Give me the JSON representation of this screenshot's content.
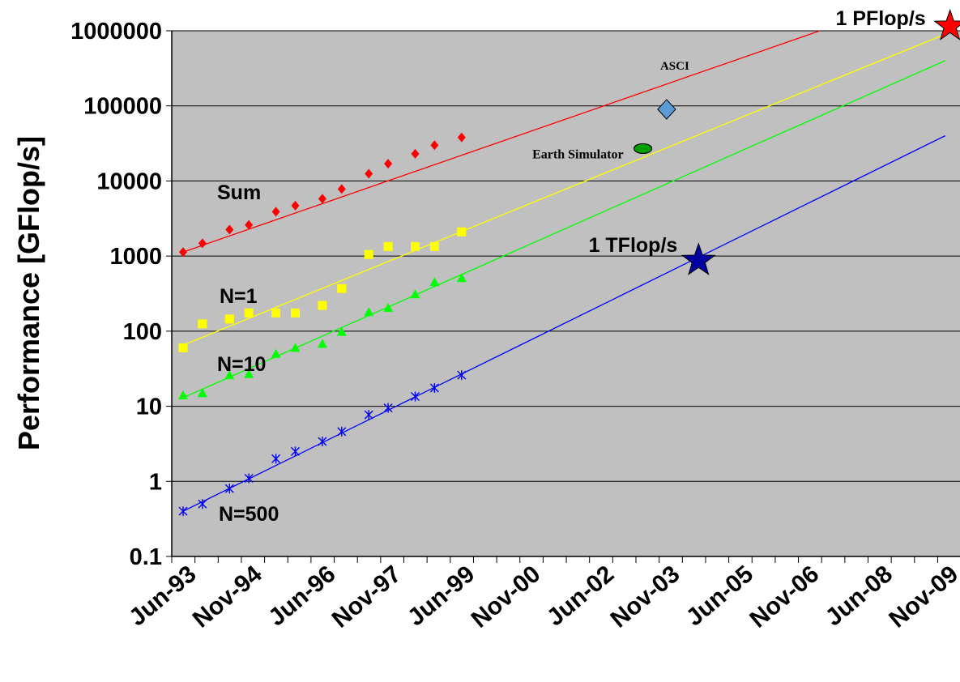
{
  "chart_data": {
    "type": "scatter",
    "title": "",
    "xlabel": "",
    "ylabel": "Performance [GFlop/s]",
    "yscale": "log",
    "ylim": [
      0.1,
      1000000
    ],
    "y_ticks": [
      "0.1",
      "1",
      "10",
      "100",
      "1000",
      "10000",
      "100000",
      "1000000"
    ],
    "x_ticks": [
      "Jun-93",
      "Nov-94",
      "Jun-96",
      "Nov-97",
      "Jun-99",
      "Nov-00",
      "Jun-02",
      "Nov-03",
      "Jun-05",
      "Nov-06",
      "Jun-08",
      "Nov-09"
    ],
    "x_dates": [
      "Jun-93",
      "Nov-93",
      "Jun-94",
      "Nov-94",
      "Jun-95",
      "Nov-95",
      "Jun-96",
      "Nov-96",
      "Jun-97",
      "Nov-97",
      "Jun-98",
      "Nov-98",
      "Jun-99"
    ],
    "grid": true,
    "background": "#c0c0c0",
    "series": [
      {
        "name": "Sum",
        "color": "#ff0000",
        "marker": "diamond",
        "values": [
          1130,
          1480,
          2250,
          2600,
          3900,
          4700,
          5800,
          7800,
          12500,
          17000,
          23000,
          30000,
          38000
        ],
        "trend": {
          "from": [
            "Jun-93",
            1130
          ],
          "to": [
            "Nov-09",
            3800000
          ]
        }
      },
      {
        "name": "N=1",
        "color": "#ffff00",
        "marker": "square",
        "values": [
          60,
          125,
          145,
          175,
          175,
          175,
          220,
          370,
          1050,
          1340,
          1340,
          1340,
          2100
        ],
        "trend": {
          "from": [
            "Jun-93",
            65
          ],
          "to": [
            "Nov-09",
            900000
          ]
        }
      },
      {
        "name": "N=10",
        "color": "#00ff00",
        "marker": "triangle",
        "values": [
          14,
          15,
          26,
          27,
          50,
          60,
          68,
          98,
          180,
          205,
          310,
          450,
          510
        ],
        "trend": {
          "from": [
            "Jun-93",
            13
          ],
          "to": [
            "Nov-09",
            400000
          ]
        }
      },
      {
        "name": "N=500",
        "color": "#0000ff",
        "marker": "asterisk",
        "values": [
          0.4,
          0.5,
          0.8,
          1.1,
          2.0,
          2.5,
          3.4,
          4.6,
          7.7,
          9.5,
          13.5,
          17.5,
          26
        ],
        "trend": {
          "from": [
            "Jun-93",
            0.4
          ],
          "to": [
            "Nov-09",
            40000
          ]
        }
      }
    ],
    "annotations": [
      {
        "label": "ASCI",
        "date": "Nov-03",
        "value": 90000,
        "marker": "diamond",
        "color": "#5b9bd5"
      },
      {
        "label": "Earth Simulator",
        "date": "Nov-02",
        "value": 27000,
        "marker": "ellipse",
        "color": "#00a000"
      },
      {
        "label": "1 TFlop/s",
        "date": "Jun-04",
        "value": 870,
        "marker": "star",
        "color": "#0000a0"
      },
      {
        "label": "1 PFlop/s",
        "date": "Nov-09",
        "value": 1150000,
        "marker": "star",
        "color": "#ff0000"
      }
    ]
  }
}
